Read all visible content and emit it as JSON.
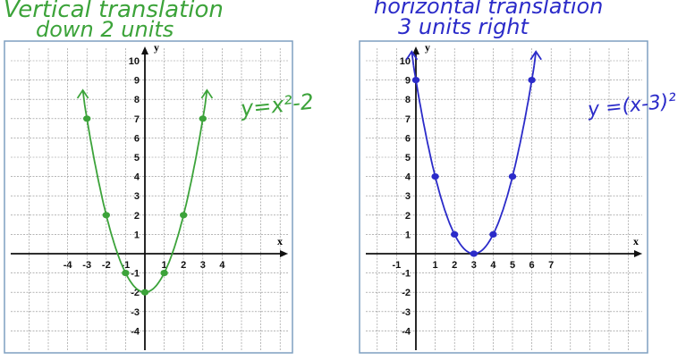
{
  "colors": {
    "grid": "#8a8a8a",
    "axis": "#111111",
    "border": "#7f9fc0",
    "green": "#3ca33a",
    "blue": "#2b2bc9"
  },
  "graphs": [
    {
      "title_line1": "Vertical translation",
      "title_line2": "down 2 units",
      "equation": "y=x²-2",
      "curve_color": "green",
      "x_axis_label": "x",
      "y_axis_label": "y",
      "x_tick_labels": [
        "-4",
        "-3",
        "-2",
        "-1",
        "1",
        "2",
        "3",
        "4"
      ],
      "y_tick_labels": [
        "10",
        "9",
        "8",
        "7",
        "6",
        "5",
        "4",
        "3",
        "2",
        "1",
        "-1",
        "-2",
        "-3",
        "-4"
      ],
      "points": [
        [
          -3,
          7
        ],
        [
          -2,
          2
        ],
        [
          -1,
          -1
        ],
        [
          0,
          -2
        ],
        [
          1,
          -1
        ],
        [
          2,
          2
        ],
        [
          3,
          7
        ]
      ]
    },
    {
      "title_line1": "horizontal translation",
      "title_line2": "3 units right",
      "equation": "y =(x-3)²",
      "curve_color": "blue",
      "x_axis_label": "x",
      "y_axis_label": "y",
      "x_tick_labels": [
        "-1",
        "1",
        "2",
        "3",
        "4",
        "5",
        "6",
        "7"
      ],
      "y_tick_labels": [
        "10",
        "9",
        "8",
        "7",
        "6",
        "5",
        "4",
        "3",
        "2",
        "1",
        "-1",
        "-2",
        "-3",
        "-4"
      ],
      "points": [
        [
          0,
          9
        ],
        [
          1,
          4
        ],
        [
          2,
          1
        ],
        [
          3,
          0
        ],
        [
          4,
          1
        ],
        [
          5,
          4
        ],
        [
          6,
          9
        ]
      ]
    }
  ]
}
